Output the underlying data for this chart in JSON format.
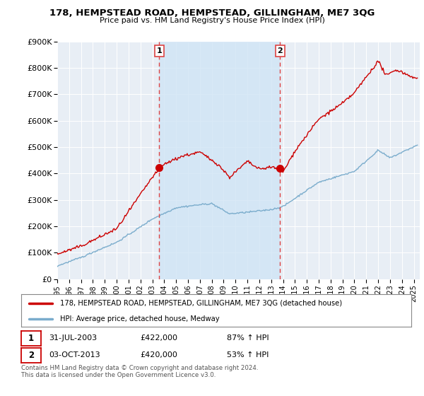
{
  "title": "178, HEMPSTEAD ROAD, HEMPSTEAD, GILLINGHAM, ME7 3QG",
  "subtitle": "Price paid vs. HM Land Registry's House Price Index (HPI)",
  "ylim": [
    0,
    900000
  ],
  "yticks": [
    0,
    100000,
    200000,
    300000,
    400000,
    500000,
    600000,
    700000,
    800000,
    900000
  ],
  "ytick_labels": [
    "£0",
    "£100K",
    "£200K",
    "£300K",
    "£400K",
    "£500K",
    "£600K",
    "£700K",
    "£800K",
    "£900K"
  ],
  "background_color": "#ffffff",
  "plot_bg_color": "#e8eef5",
  "grid_color": "#ffffff",
  "red_line_color": "#cc0000",
  "blue_line_color": "#7aaccc",
  "vline_color": "#dd4444",
  "shade_color": "#d0e4f5",
  "sale1_x": 2003.58,
  "sale1_y": 422000,
  "sale2_x": 2013.75,
  "sale2_y": 420000,
  "sale1_date": "31-JUL-2003",
  "sale1_price": "£422,000",
  "sale1_hpi": "87% ↑ HPI",
  "sale2_date": "03-OCT-2013",
  "sale2_price": "£420,000",
  "sale2_hpi": "53% ↑ HPI",
  "legend_line1": "178, HEMPSTEAD ROAD, HEMPSTEAD, GILLINGHAM, ME7 3QG (detached house)",
  "legend_line2": "HPI: Average price, detached house, Medway",
  "footnote": "Contains HM Land Registry data © Crown copyright and database right 2024.\nThis data is licensed under the Open Government Licence v3.0.",
  "xmin": 1995.0,
  "xmax": 2025.5
}
